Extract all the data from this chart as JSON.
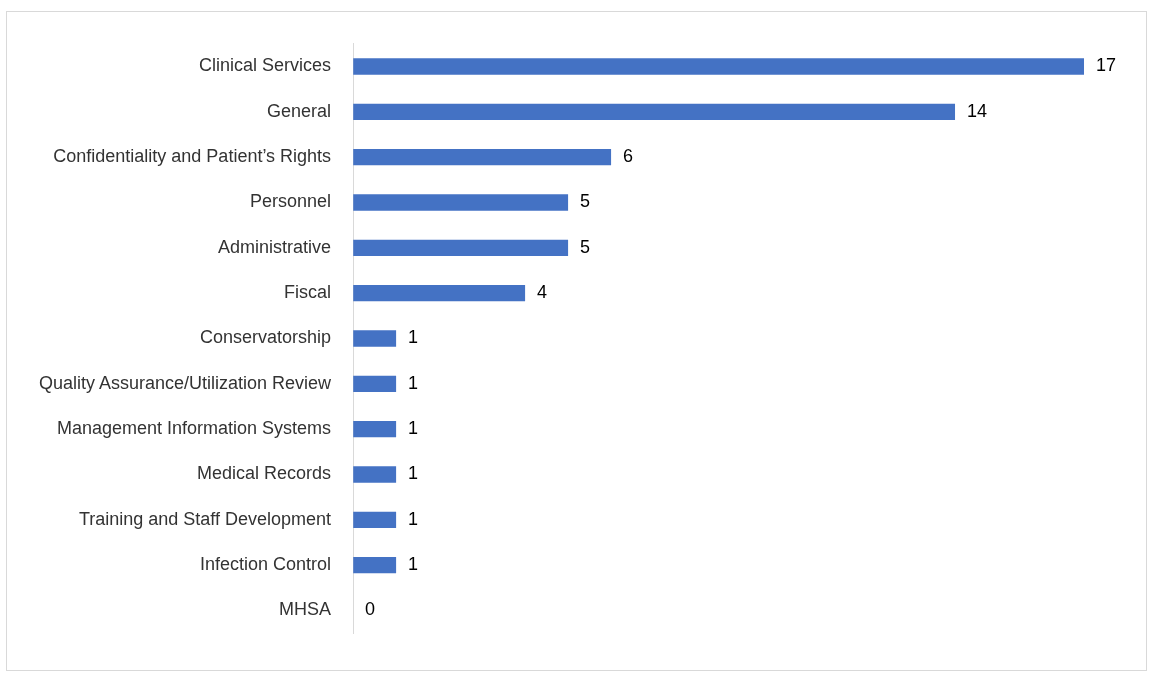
{
  "chart_data": {
    "type": "bar",
    "orientation": "horizontal",
    "data_labels": true,
    "legend": false,
    "color": "#4472c4",
    "categories": [
      "Clinical Services",
      "General",
      "Confidentiality and Patient’s Rights",
      "Personnel",
      "Administrative",
      "Fiscal",
      "Conservatorship",
      "Quality Assurance/Utilization Review",
      "Management Information Systems",
      "Medical Records",
      "Training and Staff Development",
      "Infection Control",
      "MHSA"
    ],
    "values": [
      17,
      14,
      6,
      5,
      5,
      4,
      1,
      1,
      1,
      1,
      1,
      1,
      0
    ]
  }
}
